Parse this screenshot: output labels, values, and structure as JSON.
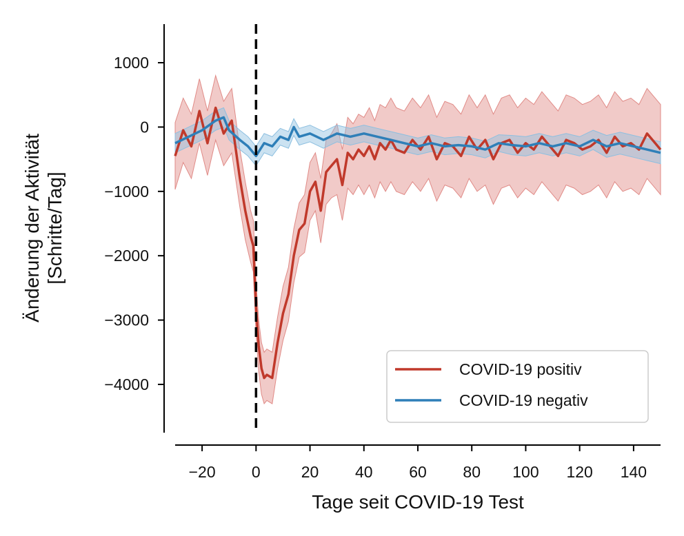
{
  "chart_data": {
    "type": "line",
    "title": "",
    "xlabel": "Tage seit COVID-19 Test",
    "ylabel_lines": [
      "Änderung der Aktivität",
      "[Schritte/Tag]"
    ],
    "xlim": [
      -30,
      150
    ],
    "ylim": [
      -4750,
      1600
    ],
    "x_ticks": [
      -20,
      0,
      20,
      40,
      60,
      80,
      100,
      120,
      140
    ],
    "x_tick_labels": [
      "−20",
      "0",
      "20",
      "40",
      "60",
      "80",
      "100",
      "120",
      "140"
    ],
    "y_ticks": [
      1000,
      0,
      -1000,
      -2000,
      -3000,
      -4000
    ],
    "y_tick_labels": [
      "1000",
      "0",
      "−1000",
      "−2000",
      "−3000",
      "−4000"
    ],
    "reference_line": {
      "x": 0,
      "style": "dashed",
      "color": "#000000"
    },
    "legend": {
      "position": "bottom-right"
    },
    "series": [
      {
        "name": "COVID-19 positiv",
        "color": "#c0392b",
        "band_color": "#e08a86",
        "x": [
          -30,
          -27,
          -24,
          -21,
          -18,
          -15,
          -12,
          -9,
          -6,
          -4,
          -2,
          -1,
          0,
          1,
          2,
          3,
          4,
          6,
          8,
          10,
          12,
          14,
          16,
          18,
          20,
          22,
          24,
          26,
          28,
          30,
          32,
          34,
          36,
          38,
          40,
          42,
          44,
          46,
          48,
          50,
          52,
          55,
          58,
          61,
          64,
          67,
          70,
          73,
          76,
          79,
          82,
          85,
          88,
          91,
          94,
          97,
          100,
          103,
          106,
          109,
          112,
          115,
          118,
          121,
          124,
          127,
          130,
          133,
          136,
          139,
          142,
          145,
          148,
          150
        ],
        "values": [
          -450,
          -50,
          -300,
          250,
          -250,
          300,
          -100,
          100,
          -800,
          -1300,
          -1700,
          -1850,
          -2800,
          -3400,
          -3750,
          -3900,
          -3850,
          -3900,
          -3350,
          -2900,
          -2600,
          -2000,
          -1600,
          -1500,
          -1000,
          -850,
          -1300,
          -700,
          -600,
          -500,
          -900,
          -400,
          -500,
          -350,
          -450,
          -300,
          -500,
          -250,
          -350,
          -200,
          -350,
          -400,
          -200,
          -350,
          -150,
          -500,
          -250,
          -300,
          -450,
          -150,
          -350,
          -200,
          -500,
          -250,
          -200,
          -400,
          -250,
          -350,
          -150,
          -300,
          -450,
          -200,
          -250,
          -350,
          -300,
          -200,
          -400,
          -150,
          -300,
          -250,
          -350,
          -100,
          -250,
          -350
        ],
        "band_half_width": [
          520,
          500,
          500,
          500,
          500,
          500,
          500,
          500,
          450,
          450,
          400,
          400,
          400,
          400,
          400,
          400,
          400,
          400,
          400,
          420,
          420,
          420,
          420,
          450,
          450,
          450,
          500,
          500,
          500,
          550,
          550,
          550,
          550,
          550,
          600,
          600,
          600,
          600,
          650,
          650,
          650,
          650,
          650,
          650,
          650,
          650,
          650,
          650,
          650,
          650,
          650,
          700,
          700,
          700,
          700,
          700,
          700,
          700,
          700,
          700,
          700,
          700,
          700,
          700,
          700,
          700,
          700,
          700,
          700,
          700,
          700,
          700,
          700,
          700
        ]
      },
      {
        "name": "COVID-19 negativ",
        "color": "#2e7fb8",
        "band_color": "#8cbfe0",
        "x": [
          -30,
          -25,
          -20,
          -15,
          -12,
          -10,
          -6,
          -3,
          0,
          3,
          6,
          9,
          12,
          14,
          16,
          20,
          25,
          30,
          35,
          40,
          45,
          50,
          55,
          60,
          65,
          70,
          75,
          80,
          85,
          90,
          95,
          100,
          105,
          110,
          115,
          120,
          125,
          130,
          135,
          140,
          145,
          150
        ],
        "values": [
          -250,
          -150,
          -50,
          100,
          150,
          -50,
          -200,
          -300,
          -450,
          -250,
          -300,
          -150,
          -200,
          0,
          -150,
          -100,
          -200,
          -100,
          -150,
          -100,
          -150,
          -200,
          -250,
          -300,
          -250,
          -300,
          -280,
          -300,
          -350,
          -250,
          -280,
          -300,
          -250,
          -300,
          -250,
          -300,
          -200,
          -300,
          -250,
          -300,
          -350,
          -400
        ],
        "band_half_width": [
          150,
          150,
          150,
          150,
          150,
          150,
          150,
          150,
          150,
          150,
          150,
          130,
          130,
          130,
          130,
          130,
          130,
          130,
          130,
          130,
          130,
          130,
          130,
          130,
          130,
          130,
          130,
          130,
          130,
          130,
          150,
          150,
          150,
          150,
          150,
          150,
          150,
          170,
          170,
          170,
          170,
          170
        ]
      }
    ]
  }
}
